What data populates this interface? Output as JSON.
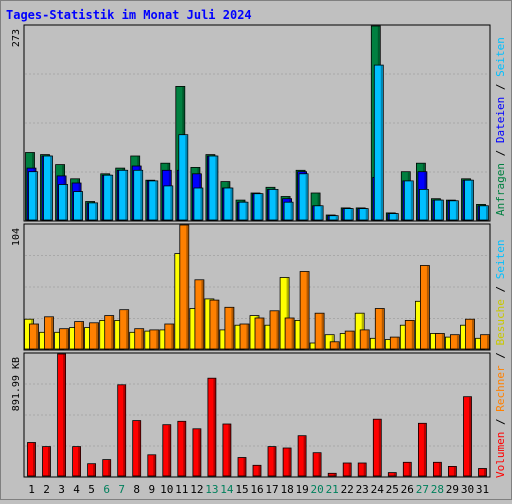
{
  "chart_data": [
    {
      "type": "bar",
      "title": "Tages-Statistik im Monat Juli 2024",
      "ylabel_max": "273",
      "ylim": [
        0,
        273
      ],
      "categories": [
        "1",
        "2",
        "3",
        "4",
        "5",
        "6",
        "7",
        "8",
        "9",
        "10",
        "11",
        "12",
        "13",
        "14",
        "15",
        "16",
        "17",
        "18",
        "19",
        "20",
        "21",
        "22",
        "23",
        "24",
        "25",
        "26",
        "27",
        "28",
        "29",
        "30",
        "31"
      ],
      "weekend_days": [
        "6",
        "7",
        "13",
        "14",
        "20",
        "21",
        "27",
        "28"
      ],
      "series": [
        {
          "name": "Anfragen",
          "color": "#008040",
          "values": [
            95,
            92,
            78,
            58,
            26,
            65,
            73,
            90,
            56,
            80,
            188,
            74,
            92,
            54,
            28,
            38,
            46,
            33,
            70,
            38,
            7,
            17,
            17,
            273,
            10,
            68,
            80,
            30,
            28,
            58,
            22
          ]
        },
        {
          "name": "Dateien",
          "color": "#0000ff",
          "values": [
            73,
            90,
            62,
            52,
            24,
            63,
            70,
            76,
            55,
            70,
            70,
            65,
            90,
            45,
            25,
            37,
            43,
            30,
            68,
            20,
            6,
            16,
            16,
            60,
            9,
            55,
            68,
            28,
            27,
            56,
            20
          ]
        },
        {
          "name": "Seiten",
          "color": "#00c0ff",
          "values": [
            68,
            90,
            50,
            40,
            24,
            63,
            70,
            70,
            55,
            48,
            120,
            45,
            90,
            45,
            25,
            37,
            43,
            25,
            65,
            20,
            6,
            16,
            16,
            218,
            9,
            55,
            43,
            28,
            27,
            56,
            20
          ]
        }
      ]
    },
    {
      "type": "bar",
      "ylabel_max": "104",
      "ylim": [
        0,
        104
      ],
      "categories": [
        "1",
        "2",
        "3",
        "4",
        "5",
        "6",
        "7",
        "8",
        "9",
        "10",
        "11",
        "12",
        "13",
        "14",
        "15",
        "16",
        "17",
        "18",
        "19",
        "20",
        "21",
        "22",
        "23",
        "24",
        "25",
        "26",
        "27",
        "28",
        "29",
        "30",
        "31"
      ],
      "series": [
        {
          "name": "Besuche",
          "color": "#ffff00",
          "values": [
            25,
            14,
            14,
            18,
            18,
            24,
            24,
            14,
            15,
            16,
            80,
            34,
            42,
            16,
            20,
            28,
            20,
            60,
            24,
            5,
            12,
            13,
            30,
            9,
            8,
            20,
            40,
            13,
            10,
            20,
            9
          ]
        },
        {
          "name": "Rechner",
          "color": "#ff8000",
          "values": [
            21,
            27,
            17,
            23,
            22,
            28,
            33,
            17,
            16,
            21,
            104,
            58,
            41,
            35,
            21,
            26,
            32,
            26,
            65,
            30,
            6,
            15,
            16,
            34,
            10,
            24,
            70,
            13,
            12,
            25,
            12
          ]
        }
      ]
    },
    {
      "type": "bar",
      "ylabel_max": "891.99 KB",
      "ylim": [
        0,
        892
      ],
      "categories": [
        "1",
        "2",
        "3",
        "4",
        "5",
        "6",
        "7",
        "8",
        "9",
        "10",
        "11",
        "12",
        "13",
        "14",
        "15",
        "16",
        "17",
        "18",
        "19",
        "20",
        "21",
        "22",
        "23",
        "24",
        "25",
        "26",
        "27",
        "28",
        "29",
        "30",
        "31"
      ],
      "series": [
        {
          "name": "Volumen",
          "color": "#ff0000",
          "values": [
            245,
            215,
            892,
            215,
            90,
            120,
            667,
            405,
            155,
            375,
            400,
            345,
            715,
            380,
            135,
            78,
            215,
            205,
            295,
            170,
            20,
            95,
            95,
            415,
            25,
            100,
            385,
            100,
            70,
            580,
            55
          ]
        }
      ]
    }
  ],
  "legend": {
    "right_top": [
      "Anfragen",
      "Dateien",
      "Seiten"
    ],
    "right_bottom": [
      "Volumen",
      "Rechner",
      "Besuche",
      "Seiten"
    ],
    "separator": "/"
  },
  "colors": {
    "title": "#0000ff",
    "weekday_label": "#000000",
    "weekend_label": "#00805c"
  }
}
